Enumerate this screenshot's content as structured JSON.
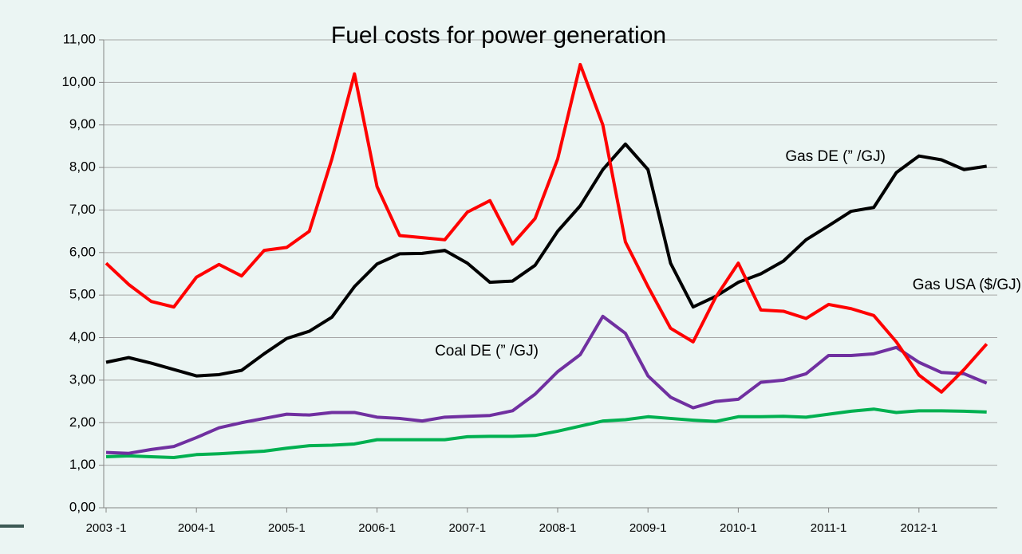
{
  "chart_data": {
    "type": "line",
    "title": "Fuel costs for power generation",
    "categories": [
      "2003 -1",
      null,
      null,
      null,
      "2004-1",
      null,
      null,
      null,
      "2005-1",
      null,
      null,
      null,
      "2006-1",
      null,
      null,
      null,
      "2007-1",
      null,
      null,
      null,
      "2008-1",
      null,
      null,
      null,
      "2009-1",
      null,
      null,
      null,
      "2010-1",
      null,
      null,
      null,
      "2011-1",
      null,
      null,
      null,
      "2012-1",
      null,
      null,
      null
    ],
    "ylim": [
      0,
      11
    ],
    "yticks": [
      {
        "value": 0,
        "label": "0,00"
      },
      {
        "value": 1,
        "label": "1,00"
      },
      {
        "value": 2,
        "label": "2,00"
      },
      {
        "value": 3,
        "label": "3,00"
      },
      {
        "value": 4,
        "label": "4,00"
      },
      {
        "value": 5,
        "label": "5,00"
      },
      {
        "value": 6,
        "label": "6,00"
      },
      {
        "value": 7,
        "label": "7,00"
      },
      {
        "value": 8,
        "label": "8,00"
      },
      {
        "value": 9,
        "label": "9,00"
      },
      {
        "value": 10,
        "label": "10,00"
      },
      {
        "value": 11,
        "label": "11,00"
      }
    ],
    "grid": true,
    "series": [
      {
        "name": "Gas USA ($/GJ)",
        "color": "#ff0000",
        "values": [
          5.75,
          5.25,
          4.85,
          4.72,
          5.42,
          5.72,
          5.45,
          6.05,
          6.12,
          6.5,
          8.2,
          10.2,
          7.55,
          6.4,
          6.35,
          6.3,
          6.95,
          7.22,
          6.2,
          6.8,
          8.2,
          10.42,
          9.0,
          6.25,
          5.2,
          4.22,
          3.9,
          4.95,
          5.75,
          4.65,
          4.62,
          4.45,
          4.78,
          4.68,
          4.52,
          3.9,
          3.12,
          2.72,
          3.25,
          3.85
        ]
      },
      {
        "name": "Gas DE (” /GJ)",
        "color": "#000000",
        "values": [
          3.42,
          3.53,
          3.4,
          3.25,
          3.1,
          3.13,
          3.23,
          3.62,
          3.98,
          4.15,
          4.48,
          5.2,
          5.73,
          5.97,
          5.98,
          6.05,
          5.75,
          5.3,
          5.33,
          5.7,
          6.5,
          7.1,
          7.95,
          8.55,
          7.95,
          5.75,
          4.72,
          4.97,
          5.3,
          5.5,
          5.8,
          6.3,
          6.63,
          6.97,
          7.06,
          7.88,
          8.27,
          8.18,
          7.95,
          8.03
        ]
      },
      {
        "name": "Coal DE (” /GJ)",
        "color": "#7030a0",
        "values": [
          1.3,
          1.28,
          1.37,
          1.44,
          1.65,
          1.88,
          2.0,
          2.1,
          2.2,
          2.18,
          2.24,
          2.24,
          2.13,
          2.1,
          2.04,
          2.13,
          2.15,
          2.17,
          2.28,
          2.67,
          3.2,
          3.6,
          4.5,
          4.1,
          3.1,
          2.6,
          2.35,
          2.5,
          2.55,
          2.95,
          3.0,
          3.15,
          3.58,
          3.58,
          3.62,
          3.77,
          3.42,
          3.18,
          3.15,
          2.93
        ]
      },
      {
        "color": "#00b050",
        "values": [
          1.2,
          1.22,
          1.2,
          1.18,
          1.25,
          1.27,
          1.3,
          1.33,
          1.4,
          1.46,
          1.47,
          1.5,
          1.6,
          1.6,
          1.6,
          1.6,
          1.67,
          1.68,
          1.68,
          1.7,
          1.8,
          1.92,
          2.04,
          2.07,
          2.14,
          2.1,
          2.06,
          2.03,
          2.14,
          2.14,
          2.15,
          2.13,
          2.2,
          2.27,
          2.32,
          2.24,
          2.28,
          2.28,
          2.27,
          2.25
        ]
      }
    ]
  }
}
